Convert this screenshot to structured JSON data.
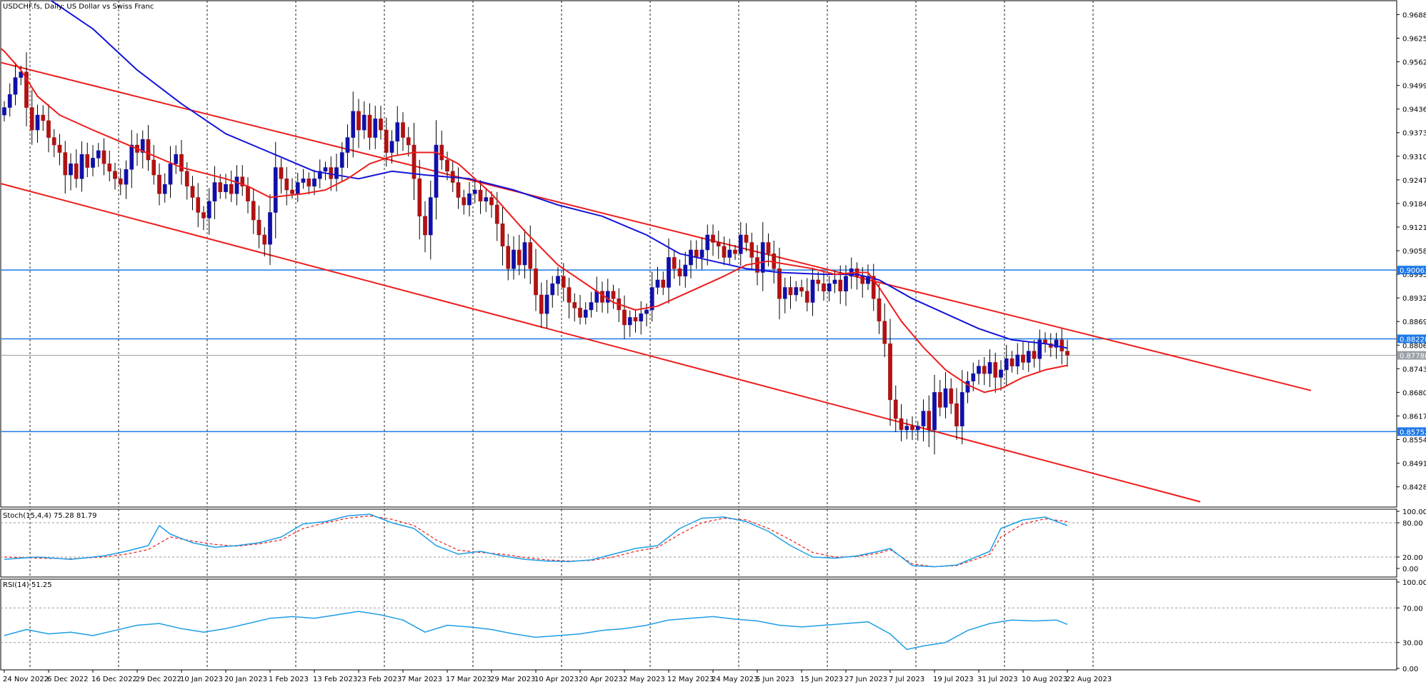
{
  "chart_data": [
    {
      "type": "candlestick",
      "title": "USDCHF.fs, Daily:  US Dollar vs Swiss Franc",
      "colors": {
        "bull": "#1010a8",
        "bear": "#b01212",
        "ma_fast": "#ee1c1c",
        "ma_slow": "#1414d8",
        "channel": "#ee1c1c",
        "level": "#1e78e6",
        "grid": "#000000"
      },
      "ylim": [
        0.8374,
        0.9725
      ],
      "y_ticks": [
        "0.96880",
        "0.96250",
        "0.95620",
        "0.94990",
        "0.94360",
        "0.93730",
        "0.93100",
        "0.92470",
        "0.91840",
        "0.91210",
        "0.90580",
        "0.89950",
        "0.89320",
        "0.88690",
        "0.88060",
        "0.87430",
        "0.86800",
        "0.86170",
        "0.85540",
        "0.84910",
        "0.84280"
      ],
      "x_labels": [
        "24 Nov 2022",
        "6 Dec 2022",
        "16 Dec 2022",
        "29 Dec 2022",
        "10 Jan 2023",
        "20 Jan 2023",
        "1 Feb 2023",
        "13 Feb 2023",
        "23 Feb 2023",
        "7 Mar 2023",
        "17 Mar 2023",
        "29 Mar 2023",
        "10 Apr 2023",
        "20 Apr 2023",
        "2 May 2023",
        "12 May 2023",
        "24 May 2023",
        "5 Jun 2023",
        "15 Jun 2023",
        "27 Jun 2023",
        "7 Jul 2023",
        "19 Jul 2023",
        "31 Jul 2023",
        "10 Aug 2023",
        "22 Aug 2023"
      ],
      "x_label_bars": [
        0,
        8,
        16,
        24,
        32,
        40,
        48,
        56,
        64,
        72,
        80,
        88,
        96,
        104,
        112,
        120,
        128,
        136,
        144,
        152,
        160,
        168,
        176,
        184,
        192
      ],
      "levels": [
        {
          "value": 0.90063,
          "label": "0.90063"
        },
        {
          "value": 0.88228,
          "label": "0.88228"
        },
        {
          "value": 0.85752,
          "label": "0.85752"
        }
      ],
      "current_price": {
        "value": 0.87788,
        "label": "0.87788"
      },
      "channel": {
        "upper": [
          [
            -6,
            0.958
          ],
          [
            236,
            0.8685
          ]
        ],
        "lower": [
          [
            -7,
            0.9262
          ],
          [
            216,
            0.8388
          ]
        ]
      },
      "close": [
        0.944,
        0.9475,
        0.952,
        0.9535,
        0.944,
        0.938,
        0.942,
        0.9405,
        0.936,
        0.934,
        0.932,
        0.926,
        0.929,
        0.925,
        0.9315,
        0.928,
        0.9305,
        0.9325,
        0.929,
        0.927,
        0.925,
        0.9235,
        0.9275,
        0.934,
        0.932,
        0.9355,
        0.93,
        0.926,
        0.921,
        0.9235,
        0.929,
        0.9315,
        0.927,
        0.923,
        0.92,
        0.916,
        0.9145,
        0.919,
        0.924,
        0.9215,
        0.9235,
        0.921,
        0.9255,
        0.923,
        0.919,
        0.914,
        0.91,
        0.9075,
        0.916,
        0.928,
        0.925,
        0.922,
        0.921,
        0.924,
        0.925,
        0.923,
        0.925,
        0.927,
        0.928,
        0.925,
        0.928,
        0.932,
        0.936,
        0.943,
        0.938,
        0.942,
        0.936,
        0.941,
        0.938,
        0.932,
        0.935,
        0.94,
        0.936,
        0.934,
        0.925,
        0.915,
        0.91,
        0.92,
        0.934,
        0.93,
        0.927,
        0.924,
        0.92,
        0.918,
        0.921,
        0.922,
        0.919,
        0.92,
        0.918,
        0.913,
        0.907,
        0.901,
        0.906,
        0.902,
        0.908,
        0.901,
        0.894,
        0.889,
        0.894,
        0.897,
        0.899,
        0.896,
        0.892,
        0.8905,
        0.888,
        0.89,
        0.892,
        0.895,
        0.892,
        0.895,
        0.893,
        0.89,
        0.886,
        0.888,
        0.887,
        0.889,
        0.89,
        0.896,
        0.898,
        0.896,
        0.904,
        0.901,
        0.899,
        0.902,
        0.906,
        0.904,
        0.906,
        0.91,
        0.908,
        0.907,
        0.904,
        0.906,
        0.905,
        0.91,
        0.908,
        0.904,
        0.9,
        0.908,
        0.905,
        0.901,
        0.893,
        0.896,
        0.894,
        0.896,
        0.895,
        0.892,
        0.898,
        0.897,
        0.895,
        0.897,
        0.898,
        0.895,
        0.899,
        0.901,
        0.899,
        0.897,
        0.899,
        0.893,
        0.887,
        0.881,
        0.866,
        0.861,
        0.858,
        0.859,
        0.858,
        0.859,
        0.863,
        0.858,
        0.868,
        0.864,
        0.869,
        0.865,
        0.859,
        0.868,
        0.871,
        0.873,
        0.875,
        0.873,
        0.876,
        0.872,
        0.874,
        0.877,
        0.875,
        0.878,
        0.876,
        0.879,
        0.877,
        0.882,
        0.881,
        0.88,
        0.882,
        0.879,
        0.8779
      ],
      "ma_fast": [
        [
          -5,
          0.965
        ],
        [
          0,
          0.959
        ],
        [
          3,
          0.954
        ],
        [
          6,
          0.947
        ],
        [
          10,
          0.942
        ],
        [
          16,
          0.938
        ],
        [
          24,
          0.933
        ],
        [
          32,
          0.928
        ],
        [
          40,
          0.925
        ],
        [
          44,
          0.923
        ],
        [
          48,
          0.92
        ],
        [
          54,
          0.921
        ],
        [
          58,
          0.922
        ],
        [
          62,
          0.925
        ],
        [
          66,
          0.929
        ],
        [
          70,
          0.931
        ],
        [
          74,
          0.932
        ],
        [
          78,
          0.932
        ],
        [
          82,
          0.929
        ],
        [
          88,
          0.921
        ],
        [
          94,
          0.911
        ],
        [
          100,
          0.902
        ],
        [
          106,
          0.896
        ],
        [
          110,
          0.892
        ],
        [
          114,
          0.89
        ],
        [
          118,
          0.891
        ],
        [
          124,
          0.895
        ],
        [
          130,
          0.899
        ],
        [
          134,
          0.902
        ],
        [
          138,
          0.903
        ],
        [
          142,
          0.902
        ],
        [
          146,
          0.901
        ],
        [
          150,
          0.8995
        ],
        [
          154,
          0.9
        ],
        [
          156,
          0.9
        ],
        [
          158,
          0.896
        ],
        [
          162,
          0.887
        ],
        [
          166,
          0.88
        ],
        [
          170,
          0.874
        ],
        [
          174,
          0.87
        ],
        [
          177,
          0.868
        ],
        [
          180,
          0.869
        ],
        [
          184,
          0.872
        ],
        [
          188,
          0.874
        ],
        [
          192,
          0.8752
        ]
      ],
      "ma_slow": [
        [
          8,
          0.973
        ],
        [
          16,
          0.965
        ],
        [
          24,
          0.954
        ],
        [
          32,
          0.945
        ],
        [
          40,
          0.937
        ],
        [
          48,
          0.932
        ],
        [
          56,
          0.927
        ],
        [
          64,
          0.925
        ],
        [
          70,
          0.927
        ],
        [
          76,
          0.926
        ],
        [
          84,
          0.925
        ],
        [
          92,
          0.922
        ],
        [
          100,
          0.918
        ],
        [
          108,
          0.915
        ],
        [
          116,
          0.91
        ],
        [
          122,
          0.905
        ],
        [
          128,
          0.903
        ],
        [
          134,
          0.901
        ],
        [
          140,
          0.9
        ],
        [
          148,
          0.8995
        ],
        [
          154,
          0.8995
        ],
        [
          158,
          0.898
        ],
        [
          164,
          0.893
        ],
        [
          170,
          0.889
        ],
        [
          176,
          0.885
        ],
        [
          182,
          0.882
        ],
        [
          188,
          0.881
        ],
        [
          192,
          0.8798
        ]
      ]
    },
    {
      "type": "line",
      "title": "Stoch(15,4,4) 75.28 81.79",
      "ylim": [
        0,
        100
      ],
      "y_ticks": [
        "100.00",
        "80.00",
        "20.00",
        "0.00"
      ],
      "levels": [
        80,
        20
      ],
      "colors": {
        "main": "#1e9ee6",
        "signal": "#ee1c1c"
      },
      "main": [
        [
          0,
          16
        ],
        [
          6,
          20
        ],
        [
          12,
          16
        ],
        [
          18,
          22
        ],
        [
          22,
          30
        ],
        [
          26,
          40
        ],
        [
          28,
          75
        ],
        [
          30,
          60
        ],
        [
          34,
          45
        ],
        [
          38,
          37
        ],
        [
          42,
          40
        ],
        [
          46,
          45
        ],
        [
          50,
          55
        ],
        [
          54,
          78
        ],
        [
          58,
          82
        ],
        [
          62,
          92
        ],
        [
          66,
          95
        ],
        [
          70,
          80
        ],
        [
          74,
          70
        ],
        [
          78,
          40
        ],
        [
          82,
          25
        ],
        [
          86,
          30
        ],
        [
          90,
          22
        ],
        [
          94,
          16
        ],
        [
          98,
          13
        ],
        [
          102,
          12
        ],
        [
          106,
          15
        ],
        [
          110,
          25
        ],
        [
          114,
          35
        ],
        [
          118,
          40
        ],
        [
          122,
          70
        ],
        [
          126,
          88
        ],
        [
          130,
          90
        ],
        [
          134,
          82
        ],
        [
          138,
          65
        ],
        [
          142,
          40
        ],
        [
          146,
          20
        ],
        [
          150,
          18
        ],
        [
          154,
          22
        ],
        [
          158,
          30
        ],
        [
          160,
          35
        ],
        [
          164,
          5
        ],
        [
          168,
          3
        ],
        [
          172,
          6
        ],
        [
          176,
          22
        ],
        [
          178,
          30
        ],
        [
          180,
          70
        ],
        [
          184,
          85
        ],
        [
          188,
          90
        ],
        [
          192,
          75
        ]
      ],
      "signal": [
        [
          0,
          20
        ],
        [
          6,
          18
        ],
        [
          12,
          17
        ],
        [
          18,
          20
        ],
        [
          22,
          25
        ],
        [
          26,
          33
        ],
        [
          30,
          55
        ],
        [
          34,
          48
        ],
        [
          38,
          42
        ],
        [
          42,
          39
        ],
        [
          46,
          43
        ],
        [
          50,
          50
        ],
        [
          54,
          70
        ],
        [
          58,
          80
        ],
        [
          62,
          88
        ],
        [
          66,
          92
        ],
        [
          70,
          86
        ],
        [
          74,
          75
        ],
        [
          78,
          50
        ],
        [
          82,
          32
        ],
        [
          86,
          28
        ],
        [
          90,
          25
        ],
        [
          94,
          19
        ],
        [
          98,
          15
        ],
        [
          102,
          13
        ],
        [
          106,
          14
        ],
        [
          110,
          20
        ],
        [
          114,
          30
        ],
        [
          118,
          37
        ],
        [
          122,
          60
        ],
        [
          126,
          80
        ],
        [
          130,
          88
        ],
        [
          134,
          85
        ],
        [
          138,
          70
        ],
        [
          142,
          50
        ],
        [
          146,
          28
        ],
        [
          150,
          20
        ],
        [
          154,
          21
        ],
        [
          158,
          27
        ],
        [
          160,
          33
        ],
        [
          164,
          8
        ],
        [
          168,
          3
        ],
        [
          172,
          5
        ],
        [
          176,
          18
        ],
        [
          178,
          25
        ],
        [
          180,
          55
        ],
        [
          184,
          78
        ],
        [
          188,
          87
        ],
        [
          192,
          82
        ]
      ]
    },
    {
      "type": "line",
      "title": "RSI(14) 51.25",
      "ylim": [
        0,
        100
      ],
      "y_ticks": [
        "100.00",
        "70.00",
        "30.00",
        "0.00"
      ],
      "levels": [
        70,
        30
      ],
      "colors": {
        "main": "#1e9ee6"
      },
      "main": [
        [
          0,
          38
        ],
        [
          4,
          45
        ],
        [
          8,
          40
        ],
        [
          12,
          42
        ],
        [
          16,
          38
        ],
        [
          20,
          44
        ],
        [
          24,
          50
        ],
        [
          28,
          52
        ],
        [
          32,
          46
        ],
        [
          36,
          42
        ],
        [
          40,
          46
        ],
        [
          44,
          52
        ],
        [
          48,
          58
        ],
        [
          52,
          60
        ],
        [
          56,
          58
        ],
        [
          60,
          62
        ],
        [
          64,
          66
        ],
        [
          68,
          62
        ],
        [
          72,
          56
        ],
        [
          76,
          42
        ],
        [
          80,
          50
        ],
        [
          84,
          48
        ],
        [
          88,
          45
        ],
        [
          92,
          40
        ],
        [
          96,
          36
        ],
        [
          100,
          38
        ],
        [
          104,
          40
        ],
        [
          108,
          44
        ],
        [
          112,
          46
        ],
        [
          116,
          50
        ],
        [
          120,
          56
        ],
        [
          124,
          58
        ],
        [
          128,
          60
        ],
        [
          132,
          57
        ],
        [
          136,
          55
        ],
        [
          140,
          50
        ],
        [
          144,
          48
        ],
        [
          148,
          50
        ],
        [
          152,
          52
        ],
        [
          156,
          54
        ],
        [
          160,
          40
        ],
        [
          163,
          22
        ],
        [
          166,
          26
        ],
        [
          170,
          30
        ],
        [
          174,
          44
        ],
        [
          178,
          52
        ],
        [
          182,
          56
        ],
        [
          186,
          55
        ],
        [
          190,
          56
        ],
        [
          192,
          51
        ]
      ]
    }
  ]
}
